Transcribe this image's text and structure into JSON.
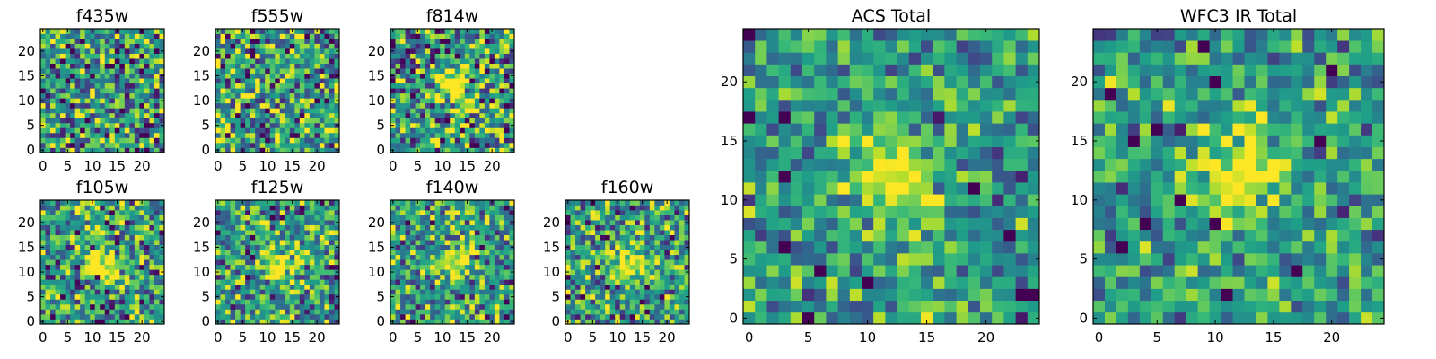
{
  "chart_data": [
    {
      "type": "heatmap",
      "title": "f435w",
      "grid_size": 25,
      "xticks": [
        0,
        5,
        10,
        15,
        20
      ],
      "yticks": [
        0,
        5,
        10,
        15,
        20
      ],
      "xlim": [
        0,
        25
      ],
      "ylim": [
        0,
        25
      ],
      "colormap": "viridis",
      "source_peak": null,
      "noise_level": 0.72
    },
    {
      "type": "heatmap",
      "title": "f555w",
      "grid_size": 25,
      "xticks": [
        0,
        5,
        10,
        15,
        20
      ],
      "yticks": [
        0,
        5,
        10,
        15,
        20
      ],
      "xlim": [
        0,
        25
      ],
      "ylim": [
        0,
        25
      ],
      "colormap": "viridis",
      "source_peak": null,
      "noise_level": 0.72
    },
    {
      "type": "heatmap",
      "title": "f814w",
      "grid_size": 25,
      "xticks": [
        0,
        5,
        10,
        15,
        20
      ],
      "yticks": [
        0,
        5,
        10,
        15,
        20
      ],
      "xlim": [
        0,
        25
      ],
      "ylim": [
        0,
        25
      ],
      "colormap": "viridis",
      "source_peak": [
        12,
        12
      ],
      "noise_level": 0.72
    },
    {
      "type": "heatmap",
      "title": "f105w",
      "grid_size": 25,
      "xticks": [
        0,
        5,
        10,
        15,
        20
      ],
      "yticks": [
        0,
        5,
        10,
        15,
        20
      ],
      "xlim": [
        0,
        25
      ],
      "ylim": [
        0,
        25
      ],
      "colormap": "viridis",
      "source_peak": [
        12,
        12
      ],
      "noise_level": 0.6
    },
    {
      "type": "heatmap",
      "title": "f125w",
      "grid_size": 25,
      "xticks": [
        0,
        5,
        10,
        15,
        20
      ],
      "yticks": [
        0,
        5,
        10,
        15,
        20
      ],
      "xlim": [
        0,
        25
      ],
      "ylim": [
        0,
        25
      ],
      "colormap": "viridis",
      "source_peak": [
        12,
        12
      ],
      "noise_level": 0.6
    },
    {
      "type": "heatmap",
      "title": "f140w",
      "grid_size": 25,
      "xticks": [
        0,
        5,
        10,
        15,
        20
      ],
      "yticks": [
        0,
        5,
        10,
        15,
        20
      ],
      "xlim": [
        0,
        25
      ],
      "ylim": [
        0,
        25
      ],
      "colormap": "viridis",
      "source_peak": [
        12,
        12
      ],
      "noise_level": 0.6
    },
    {
      "type": "heatmap",
      "title": "f160w",
      "grid_size": 25,
      "xticks": [
        0,
        5,
        10,
        15,
        20
      ],
      "yticks": [
        0,
        5,
        10,
        15,
        20
      ],
      "xlim": [
        0,
        25
      ],
      "ylim": [
        0,
        25
      ],
      "colormap": "viridis",
      "source_peak": [
        12,
        12
      ],
      "noise_level": 0.6
    },
    {
      "type": "heatmap",
      "title": "ACS Total",
      "grid_size": 25,
      "xticks": [
        0,
        5,
        10,
        15,
        20
      ],
      "yticks": [
        0,
        5,
        10,
        15,
        20
      ],
      "xlim": [
        0,
        25
      ],
      "ylim": [
        0,
        25
      ],
      "colormap": "viridis",
      "source_peak": [
        12,
        12
      ],
      "noise_level": 0.45
    },
    {
      "type": "heatmap",
      "title": "WFC3 IR Total",
      "grid_size": 25,
      "xticks": [
        0,
        5,
        10,
        15,
        20
      ],
      "yticks": [
        0,
        5,
        10,
        15,
        20
      ],
      "xlim": [
        0,
        25
      ],
      "ylim": [
        0,
        25
      ],
      "colormap": "viridis",
      "source_peak": [
        12,
        12
      ],
      "noise_level": 0.45
    }
  ]
}
